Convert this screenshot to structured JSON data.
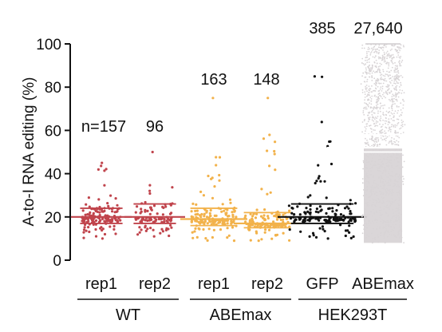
{
  "chart_data": {
    "type": "scatter",
    "ylabel": "A-to-I RNA editing (%)",
    "ylim": [
      0,
      100
    ],
    "yticks": [
      0,
      20,
      40,
      60,
      80,
      100
    ],
    "grid": false,
    "categories": [
      "rep1",
      "rep2",
      "rep1",
      "rep2",
      "GFP",
      "ABEmax"
    ],
    "groups": [
      {
        "label": "WT",
        "categories": [
          0,
          1
        ]
      },
      {
        "label": "ABEmax",
        "categories": [
          2,
          3
        ]
      },
      {
        "label": "HEK293T",
        "categories": [
          4,
          5
        ]
      }
    ],
    "series": [
      {
        "category": "rep1",
        "group": "WT",
        "count_label": "n=157",
        "n": 157,
        "color": "#c0444c",
        "median": 20,
        "q1": 17,
        "q3": 24,
        "min": 10,
        "max": 45
      },
      {
        "category": "rep2",
        "group": "WT",
        "count_label": "96",
        "n": 96,
        "color": "#c0444c",
        "median": 20,
        "q1": 17,
        "q3": 26,
        "min": 11,
        "max": 50
      },
      {
        "category": "rep1",
        "group": "ABEmax",
        "count_label": "163",
        "n": 163,
        "color": "#f2b24b",
        "median": 19,
        "q1": 16,
        "q3": 24,
        "min": 9,
        "max": 75
      },
      {
        "category": "rep2",
        "group": "ABEmax",
        "count_label": "148",
        "n": 148,
        "color": "#f2b24b",
        "median": 17,
        "q1": 15,
        "q3": 22,
        "min": 9,
        "max": 75
      },
      {
        "category": "GFP",
        "group": "HEK293T",
        "count_label": "385",
        "n": 385,
        "color": "#111111",
        "median": 20,
        "q1": 17,
        "q3": 26,
        "min": 10,
        "max": 85
      },
      {
        "category": "ABEmax",
        "group": "HEK293T",
        "count_label": "27,640",
        "n": 27640,
        "color": "#d8d4d6",
        "median": 52,
        "q1": 50,
        "q3": 58,
        "min": 8,
        "max": 100
      }
    ]
  }
}
